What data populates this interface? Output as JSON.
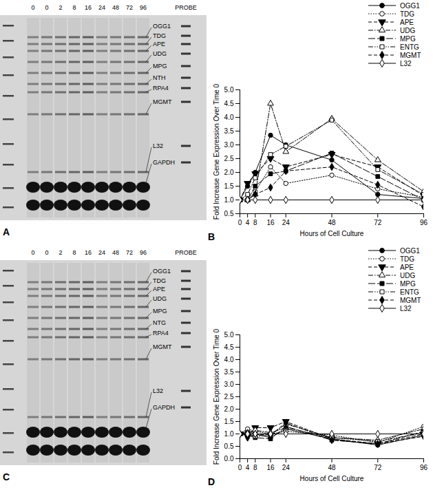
{
  "gels": [
    {
      "panel": "A",
      "lanes": [
        "0",
        "0",
        "2",
        "8",
        "16",
        "24",
        "48",
        "72",
        "96"
      ],
      "probe_header": "PROBE",
      "probes": [
        "OGG1",
        "TDG",
        "APE",
        "UDG",
        "MPG",
        "NTH",
        "RPA4",
        "MGMT",
        "L32",
        "GAPDH"
      ]
    },
    {
      "panel": "C",
      "lanes": [
        "0",
        "0",
        "2",
        "8",
        "16",
        "24",
        "48",
        "72",
        "96"
      ],
      "probe_header": "PROBE",
      "probes": [
        "OGG1",
        "TDG",
        "APE",
        "UDG",
        "MPG",
        "NTG",
        "RPA4",
        "MGMT",
        "L32",
        "GAPDH"
      ]
    }
  ],
  "chart_data": [
    {
      "type": "line",
      "annotations": [
        "B"
      ],
      "xlabel": "Hours of Cell Culture",
      "ylabel": "Fold Increase Gene Expression Over Time 0",
      "x": [
        0,
        4,
        8,
        16,
        24,
        48,
        72,
        96
      ],
      "xlim": [
        0,
        96
      ],
      "xticks": [
        0,
        4,
        8,
        16,
        24,
        48,
        72,
        96
      ],
      "ylim": [
        0.5,
        5
      ],
      "yticks": [
        0.5,
        {
          "value": 1,
          "label": "1.0"
        },
        1.5,
        {
          "value": 2,
          "label": "2.0"
        },
        2.5,
        {
          "value": 3,
          "label": "3.0"
        },
        3.5,
        {
          "value": 4,
          "label": "4.0"
        },
        4.5,
        {
          "value": 5,
          "label": "5.0"
        }
      ],
      "grid": false,
      "legend": "top-right",
      "series": [
        {
          "name": "OGG1",
          "color": "#000000",
          "marker": "filled-circle",
          "line_style": "solid",
          "values": [
            1,
            1.5,
            2.0,
            3.35,
            3.0,
            2.45,
            1.2,
            1.05
          ]
        },
        {
          "name": "TDG",
          "color": "#000000",
          "marker": "open-circle",
          "line_style": "dotted",
          "values": [
            1,
            1.0,
            1.3,
            2.2,
            1.6,
            1.9,
            1.4,
            1.1
          ]
        },
        {
          "name": "APE",
          "color": "#000000",
          "marker": "filled-triangle-down",
          "line_style": "dashed",
          "values": [
            1,
            1.6,
            1.95,
            2.5,
            2.2,
            2.65,
            2.2,
            1.15
          ]
        },
        {
          "name": "UDG",
          "color": "#000000",
          "marker": "open-triangle",
          "line_style": "dashdot",
          "values": [
            1,
            1.0,
            1.2,
            4.5,
            2.75,
            3.95,
            2.45,
            1.3
          ]
        },
        {
          "name": "MPG",
          "color": "#000000",
          "marker": "filled-square",
          "line_style": "longdash",
          "values": [
            1,
            1.0,
            1.5,
            1.95,
            2.05,
            2.7,
            1.85,
            1.0
          ]
        },
        {
          "name": "ENTG",
          "color": "#000000",
          "marker": "open-square",
          "line_style": "dashdotdot",
          "values": [
            1,
            1.2,
            1.8,
            2.65,
            2.95,
            3.9,
            2.1,
            1.2
          ]
        },
        {
          "name": "MGMT",
          "color": "#000000",
          "marker": "filled-diamond",
          "line_style": "dashed",
          "values": [
            1,
            1.0,
            1.2,
            1.45,
            2.05,
            2.2,
            1.55,
            0.75
          ]
        },
        {
          "name": "L32",
          "color": "#000000",
          "marker": "open-diamond",
          "line_style": "solid",
          "values": [
            1,
            1,
            1,
            1,
            1,
            1,
            1,
            1
          ]
        }
      ]
    },
    {
      "type": "line",
      "annotations": [
        "D"
      ],
      "xlabel": "Hours of Cell Culture",
      "ylabel": "Fold Increase Gene Expression Over Time 0",
      "x": [
        0,
        4,
        8,
        16,
        24,
        48,
        72,
        96
      ],
      "xlim": [
        0,
        96
      ],
      "xticks": [
        0,
        4,
        8,
        16,
        24,
        48,
        72,
        96
      ],
      "ylim": [
        0,
        5
      ],
      "yticks": [
        {
          "value": 0,
          "label": "0.0"
        },
        0.5,
        {
          "value": 1,
          "label": "1.0"
        },
        1.5,
        {
          "value": 2,
          "label": "2.0"
        },
        2.5,
        {
          "value": 3,
          "label": "3.0"
        },
        3.5,
        {
          "value": 4,
          "label": "4.0"
        },
        4.5,
        {
          "value": 5,
          "label": "5.0"
        }
      ],
      "grid": false,
      "legend": "top-right",
      "series": [
        {
          "name": "OGG1",
          "color": "#000000",
          "marker": "filled-circle",
          "line_style": "solid",
          "values": [
            1,
            1.1,
            1.0,
            0.85,
            1.2,
            0.8,
            0.55,
            0.95
          ]
        },
        {
          "name": "TDG",
          "color": "#000000",
          "marker": "open-circle",
          "line_style": "dotted",
          "values": [
            1,
            1.2,
            1.1,
            1.0,
            1.1,
            0.95,
            0.65,
            1.3
          ]
        },
        {
          "name": "APE",
          "color": "#000000",
          "marker": "filled-triangle-down",
          "line_style": "dashed",
          "values": [
            1,
            0.9,
            1.25,
            1.25,
            1.5,
            0.8,
            0.6,
            1.0
          ]
        },
        {
          "name": "UDG",
          "color": "#000000",
          "marker": "open-triangle",
          "line_style": "dashdot",
          "values": [
            1,
            1.05,
            1.15,
            1.05,
            1.25,
            0.85,
            0.75,
            1.2
          ]
        },
        {
          "name": "MPG",
          "color": "#000000",
          "marker": "filled-square",
          "line_style": "longdash",
          "values": [
            1,
            0.95,
            0.85,
            0.8,
            1.3,
            0.75,
            0.6,
            1.1
          ]
        },
        {
          "name": "ENTG",
          "color": "#000000",
          "marker": "open-square",
          "line_style": "dashdotdot",
          "values": [
            1,
            1.0,
            0.9,
            0.95,
            1.4,
            0.85,
            0.7,
            1.05
          ]
        },
        {
          "name": "MGMT",
          "color": "#000000",
          "marker": "filled-diamond",
          "line_style": "dashed",
          "values": [
            1,
            0.85,
            1.0,
            0.95,
            1.45,
            0.75,
            0.6,
            0.9
          ]
        },
        {
          "name": "L32",
          "color": "#000000",
          "marker": "open-diamond",
          "line_style": "solid",
          "values": [
            1,
            1,
            1,
            1,
            1,
            1,
            1,
            1
          ]
        }
      ]
    }
  ]
}
